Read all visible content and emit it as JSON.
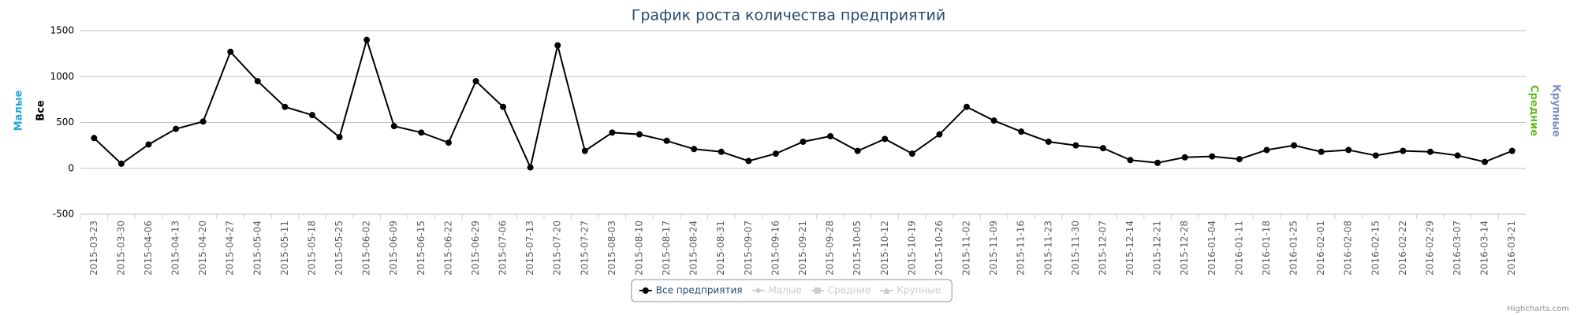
{
  "chart_data": {
    "type": "line",
    "title": "График роста количества предприятий",
    "categories": [
      "2015-03-23",
      "2015-03-30",
      "2015-04-06",
      "2015-04-13",
      "2015-04-20",
      "2015-04-27",
      "2015-05-04",
      "2015-05-11",
      "2015-05-18",
      "2015-05-25",
      "2015-06-02",
      "2015-06-09",
      "2015-06-15",
      "2015-06-22",
      "2015-06-29",
      "2015-07-06",
      "2015-07-13",
      "2015-07-20",
      "2015-07-27",
      "2015-08-03",
      "2015-08-10",
      "2015-08-17",
      "2015-08-24",
      "2015-08-31",
      "2015-09-07",
      "2015-09-16",
      "2015-09-21",
      "2015-09-28",
      "2015-10-05",
      "2015-10-12",
      "2015-10-19",
      "2015-10-26",
      "2015-11-02",
      "2015-11-09",
      "2015-11-16",
      "2015-11-23",
      "2015-11-30",
      "2015-12-07",
      "2015-12-14",
      "2015-12-21",
      "2015-12-28",
      "2016-01-04",
      "2016-01-11",
      "2016-01-18",
      "2016-01-25",
      "2016-02-01",
      "2016-02-08",
      "2016-02-15",
      "2016-02-22",
      "2016-02-29",
      "2016-03-07",
      "2016-03-14",
      "2016-03-21"
    ],
    "series": [
      {
        "name": "Все предприятия",
        "color": "#000000",
        "marker": "circle",
        "visible": true,
        "values": [
          330,
          50,
          260,
          430,
          510,
          1270,
          950,
          670,
          580,
          340,
          1400,
          460,
          390,
          280,
          950,
          670,
          10,
          1340,
          190,
          390,
          370,
          300,
          210,
          180,
          80,
          160,
          290,
          350,
          190,
          320,
          160,
          370,
          670,
          520,
          400,
          290,
          250,
          220,
          90,
          60,
          120,
          130,
          100,
          200,
          250,
          180,
          200,
          140,
          190,
          180,
          140,
          70,
          190
        ]
      },
      {
        "name": "Малые",
        "color": "#24a5d8",
        "marker": "diamond",
        "visible": false
      },
      {
        "name": "Средние",
        "color": "#66bb22",
        "marker": "square",
        "visible": false
      },
      {
        "name": "Крупные",
        "color": "#7d8fc9",
        "marker": "triangle",
        "visible": false
      }
    ],
    "axis_titles": [
      {
        "text": "Малые",
        "color": "#24a5d8",
        "side": "left"
      },
      {
        "text": "Все",
        "color": "#000000",
        "side": "left"
      },
      {
        "text": "Средние",
        "color": "#66bb22",
        "side": "right"
      },
      {
        "text": "Крупные",
        "color": "#7d8fc9",
        "side": "right"
      }
    ],
    "ylim": [
      -500,
      1500
    ],
    "yticks": [
      -500,
      0,
      500,
      1000,
      1500
    ],
    "grid": true,
    "legend": "bottom",
    "credits": "Highcharts.com"
  }
}
